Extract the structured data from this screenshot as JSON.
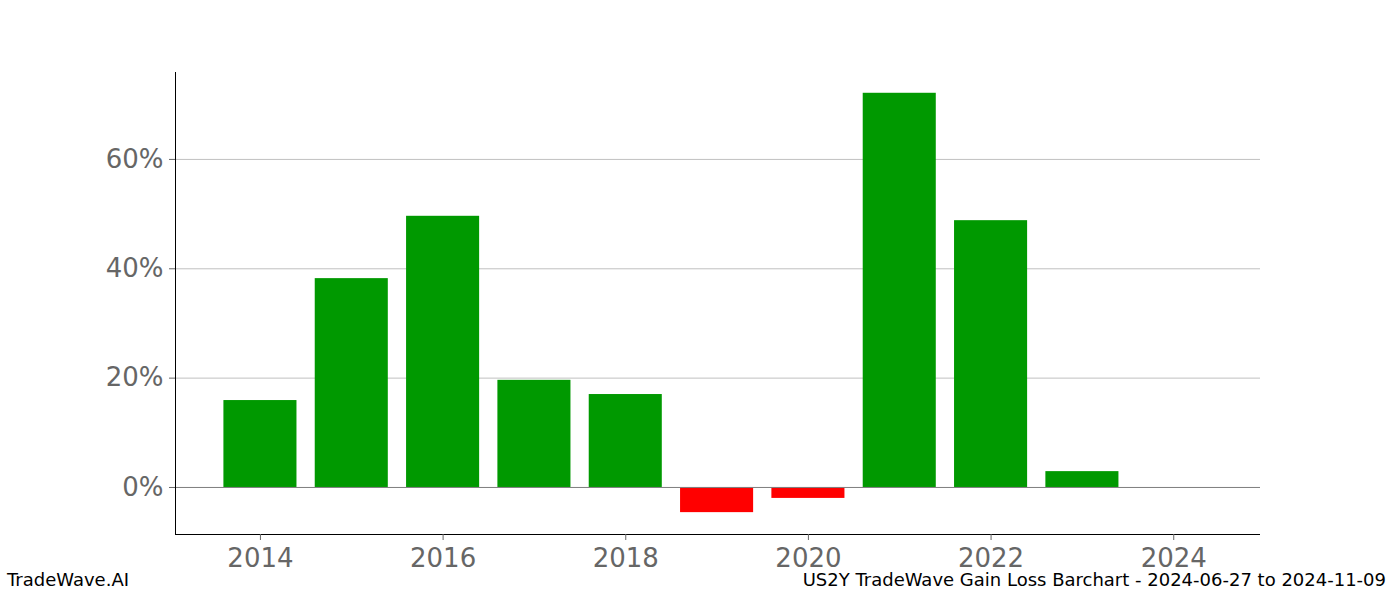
{
  "chart_data": {
    "type": "bar",
    "title": "US2Y TradeWave Gain Loss Barchart - 2024-06-27 to 2024-11-09",
    "source": "TradeWave.AI",
    "x": [
      2014,
      2015,
      2016,
      2017,
      2018,
      2019,
      2020,
      2021,
      2022,
      2023
    ],
    "values": [
      15.9,
      38.2,
      49.6,
      19.6,
      17.0,
      -4.6,
      -2.0,
      72.1,
      48.8,
      2.9
    ],
    "colors": [
      "#009900",
      "#009900",
      "#009900",
      "#009900",
      "#009900",
      "#ff0000",
      "#ff0000",
      "#009900",
      "#009900",
      "#009900"
    ],
    "xlim": [
      2013.07,
      2024.95
    ],
    "xticks": [
      2014,
      2016,
      2018,
      2020,
      2022,
      2024
    ],
    "ylim": [
      -8.6,
      75.9
    ],
    "yticks": [
      {
        "value": 0,
        "label": "0%"
      },
      {
        "value": 20,
        "label": "20%"
      },
      {
        "value": 40,
        "label": "40%"
      },
      {
        "value": 60,
        "label": "60%"
      }
    ],
    "grid": true
  }
}
